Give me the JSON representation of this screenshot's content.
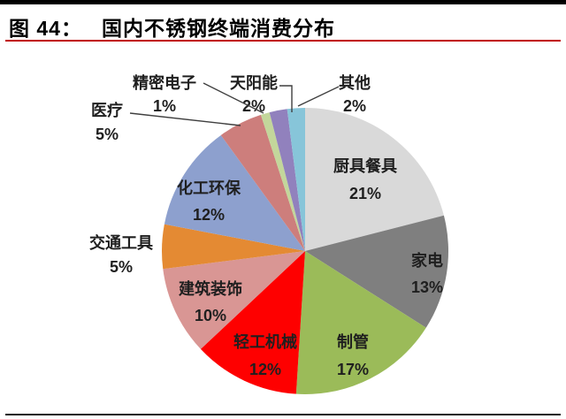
{
  "header": {
    "figure_label": "图 44：",
    "title": "国内不锈钢终端消费分布"
  },
  "chart_data": {
    "type": "pie",
    "title": "国内不锈钢终端消费分布",
    "start_angle_deg": 0,
    "direction": "clockwise",
    "legend_position": "none",
    "data_labels": "category name + percent",
    "segments": [
      {
        "name": "kitchenware-tableware",
        "label": "厨具餐具",
        "value": 21,
        "display": "21%",
        "color": "#d9d9d9"
      },
      {
        "name": "home-appliances",
        "label": "家电",
        "value": 13,
        "display": "13%",
        "color": "#7f7f7f"
      },
      {
        "name": "pipe-making",
        "label": "制管",
        "value": 17,
        "display": "17%",
        "color": "#9bbb59"
      },
      {
        "name": "light-industry-machinery",
        "label": "轻工机械",
        "value": 12,
        "display": "12%",
        "color": "#fe0000"
      },
      {
        "name": "construction-decoration",
        "label": "建筑装饰",
        "value": 10,
        "display": "10%",
        "color": "#d99694"
      },
      {
        "name": "transportation",
        "label": "交通工具",
        "value": 5,
        "display": "5%",
        "color": "#e48a33"
      },
      {
        "name": "chemical-environmental-protection",
        "label": "化工环保",
        "value": 12,
        "display": "12%",
        "color": "#8da0ce"
      },
      {
        "name": "medical",
        "label": "医疗",
        "value": 5,
        "display": "5%",
        "color": "#cd7e7c"
      },
      {
        "name": "precision-electronics",
        "label": "精密电子",
        "value": 1,
        "display": "1%",
        "color": "#c3d69b"
      },
      {
        "name": "solar-energy",
        "label": "天阳能",
        "value": 2,
        "display": "2%",
        "color": "#9181bd"
      },
      {
        "name": "other",
        "label": "其他",
        "value": 2,
        "display": "2%",
        "color": "#87c5d9"
      }
    ]
  }
}
